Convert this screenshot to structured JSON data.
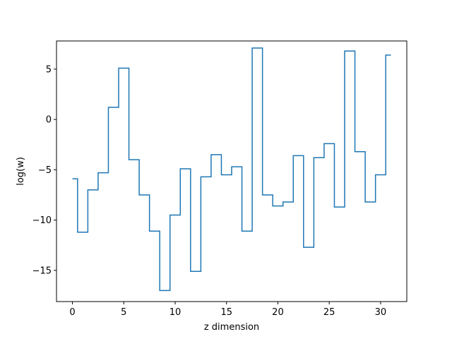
{
  "chart_data": {
    "type": "line",
    "drawstyle": "steps-mid",
    "xlabel": "z dimension",
    "ylabel": "log(w)",
    "xlim": [
      -1.55,
      32.55
    ],
    "ylim": [
      -18.1,
      7.8
    ],
    "xticks": [
      0,
      5,
      10,
      15,
      20,
      25,
      30
    ],
    "xtick_labels": [
      "0",
      "5",
      "10",
      "15",
      "20",
      "25",
      "30"
    ],
    "yticks": [
      5,
      0,
      -5,
      -10,
      -15
    ],
    "ytick_labels": [
      "5",
      "0",
      "−5",
      "−10",
      "−15"
    ],
    "grid": false,
    "series": [
      {
        "color": "#1f77b4",
        "x": [
          0,
          1,
          2,
          3,
          4,
          5,
          6,
          7,
          8,
          9,
          10,
          11,
          12,
          13,
          14,
          15,
          16,
          17,
          18,
          19,
          20,
          21,
          22,
          23,
          24,
          25,
          26,
          27,
          28,
          29,
          30,
          31
        ],
        "y": [
          -5.9,
          -11.2,
          -7.0,
          -5.3,
          1.2,
          5.1,
          -4.0,
          -7.5,
          -11.1,
          -17.0,
          -9.5,
          -4.9,
          -15.1,
          -5.7,
          -3.5,
          -5.5,
          -4.7,
          -11.1,
          7.1,
          -7.5,
          -8.6,
          -8.2,
          -3.6,
          -12.7,
          -3.8,
          -2.4,
          -8.7,
          6.8,
          -3.2,
          -8.2,
          -5.5,
          6.4
        ]
      }
    ]
  }
}
